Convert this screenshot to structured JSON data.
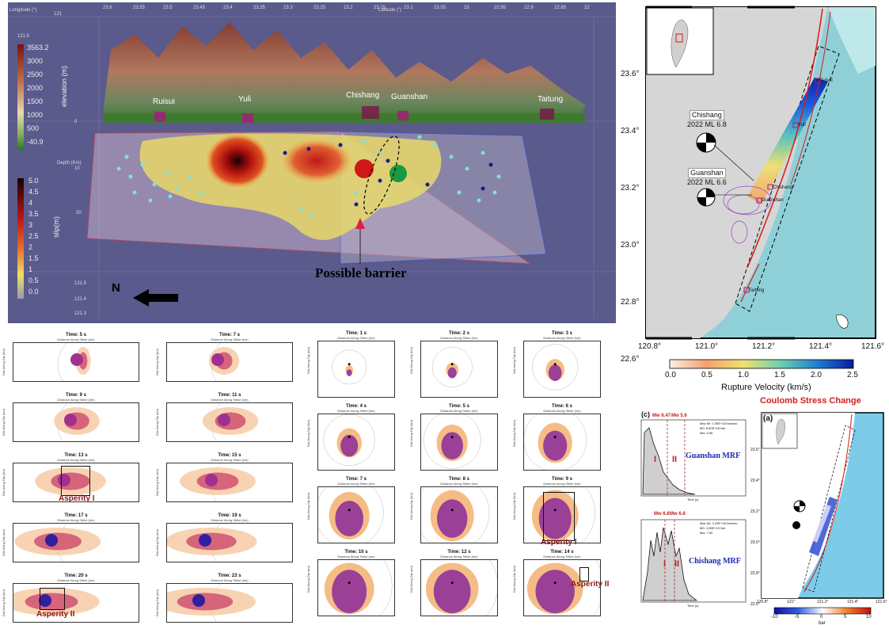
{
  "top_view": {
    "lon_label": "Longitude (°)",
    "lat_label": "Latitude (°)",
    "lon_ticks": [
      "121",
      "121.5"
    ],
    "lat_ticks": [
      "23.6",
      "23.55",
      "23.5",
      "23.45",
      "23.4",
      "23.35",
      "23.3",
      "23.25",
      "23.2",
      "23.15",
      "23.1",
      "23.05",
      "23",
      "22.95",
      "22.9",
      "22.85",
      "22"
    ],
    "lon_bottom_ticks": [
      "121.5",
      "121.4",
      "121.3"
    ],
    "elev_ticks": [
      "3563.2",
      "3000",
      "2500",
      "2000",
      "1500",
      "1000",
      "500",
      "-40.9"
    ],
    "elev_label": "elevation (m)",
    "slip_ticks": [
      "5.0",
      "4.5",
      "4",
      "3.5",
      "3",
      "2.5",
      "2",
      "1.5",
      "1",
      "0.5",
      "0.0"
    ],
    "slip_label": "slip(m)",
    "depth_label": "Depth (Km)",
    "depth_ticks": [
      "0",
      "10",
      "20"
    ],
    "towns": [
      "Ruisui",
      "Yuli",
      "Chishang",
      "Guanshan",
      "Taitung"
    ],
    "north": "N",
    "barrier": "Possible barrier"
  },
  "map_right": {
    "lat_ticks": [
      "23.6°",
      "23.4°",
      "23.2°",
      "23.0°",
      "22.8°",
      "22.6°"
    ],
    "lon_ticks": [
      "120.8°",
      "121.0°",
      "121.2°",
      "121.4°",
      "121.6°"
    ],
    "chishang": {
      "name": "Chishang",
      "event": "2022 ML 6.8"
    },
    "guanshan": {
      "name": "Guanshan",
      "event": "2022 ML 6.6"
    },
    "towns": [
      "Ruisui",
      "Yuli",
      "Chishang",
      "Guanshan",
      "Taitung"
    ],
    "cbar_ticks": [
      "0.0",
      "0.5",
      "1.0",
      "1.5",
      "2.0",
      "2.5"
    ],
    "cbar_label": "Rupture Velocity (km/s)",
    "colors": {
      "sea": "#9fd8e0",
      "land": "#d9d9d9",
      "fault": "#d81b1b"
    }
  },
  "left_snaps": {
    "sub": "Distance Along Strike (km)",
    "yaxis": "Dist Along Dip (km)",
    "items": [
      {
        "title": "Time: 5 s"
      },
      {
        "title": "Time: 7 s"
      },
      {
        "title": "Time: 9 s"
      },
      {
        "title": "Time: 11 s"
      },
      {
        "title": "Time: 13 s"
      },
      {
        "title": "Time: 15 s"
      },
      {
        "title": "Time: 17 s"
      },
      {
        "title": "Time: 19 s"
      },
      {
        "title": "Time: 20 s"
      },
      {
        "title": "Time: 23 s"
      }
    ],
    "asperity1": "Asperity I",
    "asperity2": "Asperity II"
  },
  "mid_snaps": {
    "sub": "Distance Along Strike (km)",
    "yaxis": "Dist Along Dip (km)",
    "items": [
      {
        "title": "Time: 1 s"
      },
      {
        "title": "Time: 2 s"
      },
      {
        "title": "Time: 3 s"
      },
      {
        "title": "Time: 4 s"
      },
      {
        "title": "Time: 5 s"
      },
      {
        "title": "Time: 6 s"
      },
      {
        "title": "Time: 7 s"
      },
      {
        "title": "Time: 8 s"
      },
      {
        "title": "Time: 9 s"
      },
      {
        "title": "Time: 10 s"
      },
      {
        "title": "Time: 12 s"
      },
      {
        "title": "Time: 14 s"
      }
    ],
    "asperity1": "Asperity I",
    "asperity2": "Asperity II"
  },
  "mrf": {
    "c_label": "(c)",
    "guanshan": {
      "mw_a": "Mw 6.47",
      "mw_b": "Mw 5.6",
      "phase1": "I",
      "phase2": "II",
      "name": "Guanshan MRF",
      "stats": [
        "Max Mr: 1.59E+18 Nm/sec",
        "M0: 8.60E+18 Nm",
        "Mw: 6.56"
      ],
      "xlabel": "Time (s)"
    },
    "chishang": {
      "mw_a": "Mw 6.8",
      "mw_b": "Mw 6.8",
      "phase1": "I",
      "phase2": "II",
      "name": "Chishang MRF",
      "stats": [
        "Max Mr: 3.29E+18 Nm/sec",
        "M0: 3.96E+19 Nm",
        "Mw: 7.00"
      ],
      "xlabel": "Time (s)"
    }
  },
  "coulomb": {
    "title": "Coulomb Stress Change",
    "a_label": "(a)",
    "lat_ticks": [
      "23.6°",
      "23.4°",
      "23.2°",
      "23.0°",
      "22.8°",
      "22.6°"
    ],
    "lon_ticks": [
      "120.8°",
      "121°",
      "121.2°",
      "121.4°",
      "121.6°"
    ],
    "cbar_ticks": [
      "-10",
      "-5",
      "0",
      "5",
      "10"
    ],
    "cbar_unit": "bar"
  }
}
